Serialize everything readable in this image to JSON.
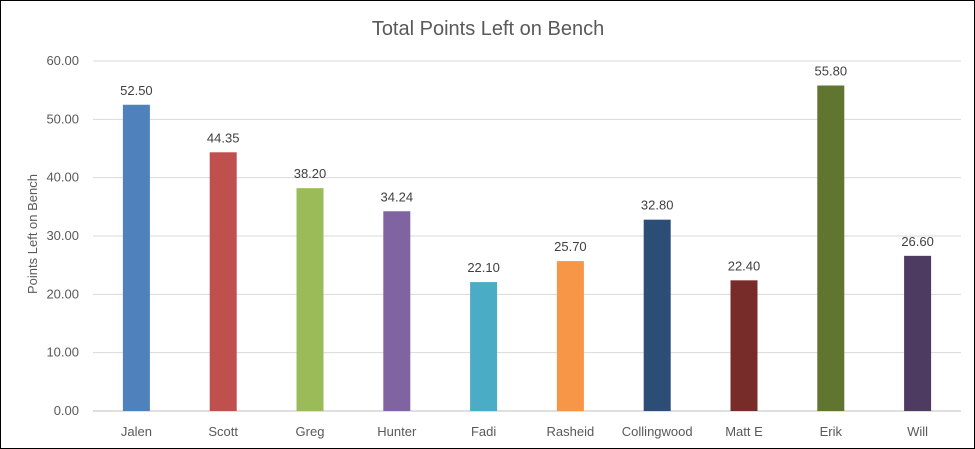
{
  "chart_data": {
    "type": "bar",
    "title": "Total Points Left on Bench",
    "xlabel": "",
    "ylabel": "Points Left on Bench",
    "ylim": [
      0,
      60
    ],
    "ytick_step": 10,
    "ytick_format_decimals": 2,
    "grid": true,
    "legend": "none",
    "categories": [
      "Jalen",
      "Scott",
      "Greg",
      "Hunter",
      "Fadi",
      "Rasheid",
      "Collingwood",
      "Matt E",
      "Erik",
      "Will"
    ],
    "values": [
      52.5,
      44.35,
      38.2,
      34.24,
      22.1,
      25.7,
      32.8,
      22.4,
      55.8,
      26.6
    ],
    "data_labels": [
      "52.50",
      "44.35",
      "38.20",
      "34.24",
      "22.10",
      "25.70",
      "32.80",
      "22.40",
      "55.80",
      "26.60"
    ],
    "colors": [
      "#4f81bd",
      "#c0504d",
      "#9bbb59",
      "#8064a2",
      "#4bacc6",
      "#f79646",
      "#2c4d75",
      "#772c2a",
      "#5f7530",
      "#4d3b62"
    ]
  }
}
